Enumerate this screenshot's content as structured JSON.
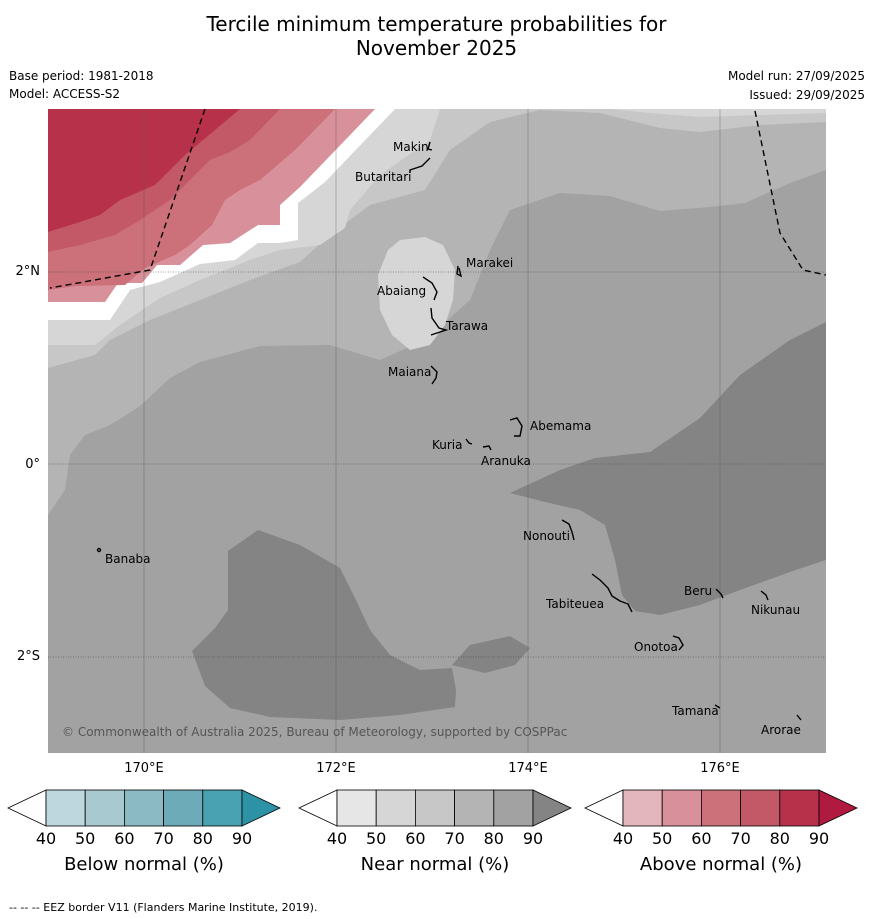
{
  "title": {
    "line1": "Tercile minimum temperature probabilities for",
    "line2": "November 2025"
  },
  "meta": {
    "base_period": "Base period: 1981-2018",
    "model": "Model: ACCESS-S2",
    "model_run": "Model run: 27/09/2025",
    "issued": "Issued: 29/09/2025"
  },
  "axes": {
    "lat_labels": [
      "2°N",
      "0°",
      "2°S"
    ],
    "lon_labels": [
      "170°E",
      "172°E",
      "174°E",
      "176°E"
    ]
  },
  "places": {
    "makin": "Makin",
    "butaritari": "Butaritari",
    "marakei": "Marakei",
    "abaiang": "Abaiang",
    "tarawa": "Tarawa",
    "maiana": "Maiana",
    "abemama": "Abemama",
    "kuria": "Kuria",
    "aranuka": "Aranuka",
    "banaba": "Banaba",
    "nonouti": "Nonouti",
    "beru": "Beru",
    "tabiteuea": "Tabiteuea",
    "nikunau": "Nikunau",
    "onotoa": "Onotoa",
    "tamana": "Tamana",
    "arorae": "Arorae"
  },
  "copyright": "© Commonwealth of Australia 2025, Bureau of Meteorology, supported by COSPPac",
  "colorbars": {
    "below": {
      "label": "Below normal (%)",
      "ticks": [
        "40",
        "50",
        "60",
        "70",
        "80",
        "90"
      ],
      "colors": [
        "#ffffff",
        "#bed6de",
        "#a8c9d0",
        "#8cbac4",
        "#6eabb8",
        "#48a2b1",
        "#2e92a6"
      ]
    },
    "near": {
      "label": "Near normal (%)",
      "ticks": [
        "40",
        "50",
        "60",
        "70",
        "80",
        "90"
      ],
      "colors": [
        "#ffffff",
        "#e6e6e6",
        "#d6d6d6",
        "#c7c7c7",
        "#b4b4b4",
        "#a2a2a2",
        "#848484"
      ]
    },
    "above": {
      "label": "Above normal (%)",
      "ticks": [
        "40",
        "50",
        "60",
        "70",
        "80",
        "90"
      ],
      "colors": [
        "#ffffff",
        "#e3b5bd",
        "#d8919b",
        "#cc7079",
        "#c35966",
        "#b8314a",
        "#b11a40"
      ]
    }
  },
  "footer": "--  --  -- EEZ border V11 (Flanders Marine Institute, 2019)."
}
